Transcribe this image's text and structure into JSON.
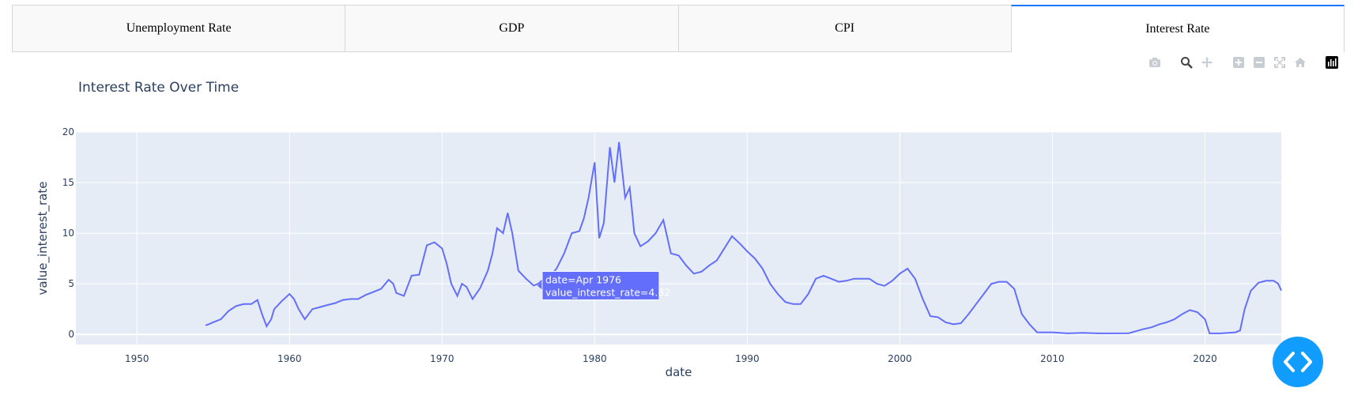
{
  "tabs": [
    {
      "label": "Unemployment Rate",
      "active": false
    },
    {
      "label": "GDP",
      "active": false
    },
    {
      "label": "CPI",
      "active": false
    },
    {
      "label": "Interest Rate",
      "active": true
    }
  ],
  "modebar": {
    "icons": [
      "camera-icon",
      "zoom-icon",
      "pan-icon",
      "zoom-in-icon",
      "zoom-out-icon",
      "autoscale-icon",
      "reset-axes-icon",
      "plotly-logo-icon"
    ]
  },
  "tooltip": {
    "line1": "date=Apr 1976",
    "line2": "value_interest_rate=4.82",
    "date": "1976-04",
    "value": 4.82
  },
  "colors": {
    "line": "#636efa",
    "plot_bg": "#e5ecf6",
    "tab_active_border": "#1975fa",
    "fab": "#119dff"
  },
  "chart_data": {
    "type": "line",
    "title": "Interest Rate Over Time",
    "xlabel": "date",
    "ylabel": "value_interest_rate",
    "xlim": [
      1946,
      2025
    ],
    "ylim": [
      -1,
      20
    ],
    "x_ticks": [
      "1950",
      "1960",
      "1970",
      "1980",
      "1990",
      "2000",
      "2010",
      "2020"
    ],
    "y_ticks": [
      "0",
      "5",
      "10",
      "15",
      "20"
    ],
    "grid": true,
    "series": [
      {
        "x": [
          1954.5,
          1954.7,
          1955.0,
          1955.5,
          1956.0,
          1956.5,
          1957.0,
          1957.5,
          1957.9,
          1958.2,
          1958.5,
          1958.8,
          1959.0,
          1959.5,
          1960.0,
          1960.3,
          1960.6,
          1961.0,
          1961.5,
          1962.0,
          1962.5,
          1963.0,
          1963.5,
          1964.0,
          1964.5,
          1965.0,
          1965.5,
          1966.0,
          1966.5,
          1966.8,
          1967.0,
          1967.5,
          1968.0,
          1968.5,
          1969.0,
          1969.5,
          1970.0,
          1970.3,
          1970.6,
          1971.0,
          1971.3,
          1971.6,
          1972.0,
          1972.5,
          1973.0,
          1973.3,
          1973.6,
          1974.0,
          1974.3,
          1974.6,
          1975.0,
          1975.5,
          1976.0,
          1976.3,
          1976.6,
          1977.0,
          1977.5,
          1978.0,
          1978.5,
          1979.0,
          1979.3,
          1979.6,
          1980.0,
          1980.3,
          1980.6,
          1981.0,
          1981.3,
          1981.6,
          1982.0,
          1982.3,
          1982.6,
          1983.0,
          1983.5,
          1984.0,
          1984.5,
          1985.0,
          1985.5,
          1986.0,
          1986.5,
          1987.0,
          1987.5,
          1988.0,
          1988.5,
          1989.0,
          1989.5,
          1990.0,
          1990.5,
          1991.0,
          1991.5,
          1992.0,
          1992.5,
          1993.0,
          1993.5,
          1994.0,
          1994.5,
          1995.0,
          1995.5,
          1996.0,
          1996.5,
          1997.0,
          1997.5,
          1998.0,
          1998.5,
          1999.0,
          1999.5,
          2000.0,
          2000.5,
          2001.0,
          2001.5,
          2002.0,
          2002.5,
          2003.0,
          2003.5,
          2004.0,
          2004.5,
          2005.0,
          2005.5,
          2006.0,
          2006.5,
          2007.0,
          2007.5,
          2008.0,
          2008.5,
          2009.0,
          2010.0,
          2011.0,
          2012.0,
          2013.0,
          2014.0,
          2015.0,
          2015.9,
          2016.5,
          2017.0,
          2017.5,
          2018.0,
          2018.5,
          2019.0,
          2019.5,
          2020.0,
          2020.3,
          2021.0,
          2022.0,
          2022.3,
          2022.6,
          2023.0,
          2023.5,
          2024.0,
          2024.5,
          2024.8,
          2025.0
        ],
        "y": [
          0.9,
          1.0,
          1.2,
          1.5,
          2.3,
          2.8,
          3.0,
          3.0,
          3.4,
          2.0,
          0.8,
          1.5,
          2.5,
          3.3,
          4.0,
          3.5,
          2.5,
          1.5,
          2.5,
          2.7,
          2.9,
          3.1,
          3.4,
          3.5,
          3.5,
          3.9,
          4.2,
          4.5,
          5.4,
          5.0,
          4.1,
          3.8,
          5.8,
          5.9,
          8.8,
          9.1,
          8.5,
          7.0,
          5.0,
          3.8,
          5.0,
          4.7,
          3.5,
          4.6,
          6.3,
          8.0,
          10.5,
          10.0,
          12.0,
          10.0,
          6.3,
          5.5,
          4.82,
          5.0,
          5.4,
          5.6,
          6.5,
          8.0,
          10.0,
          10.2,
          11.5,
          13.5,
          17.0,
          9.5,
          11.0,
          18.5,
          15.0,
          19.0,
          13.5,
          14.5,
          10.0,
          8.7,
          9.2,
          10.0,
          11.3,
          8.0,
          7.8,
          6.8,
          6.0,
          6.2,
          6.8,
          7.3,
          8.5,
          9.7,
          9.0,
          8.2,
          7.5,
          6.5,
          5.0,
          4.0,
          3.2,
          3.0,
          3.0,
          4.0,
          5.5,
          5.8,
          5.5,
          5.2,
          5.3,
          5.5,
          5.5,
          5.5,
          5.0,
          4.8,
          5.3,
          6.0,
          6.5,
          5.5,
          3.5,
          1.8,
          1.7,
          1.2,
          1.0,
          1.1,
          2.0,
          3.0,
          4.0,
          5.0,
          5.2,
          5.2,
          4.5,
          2.0,
          1.0,
          0.2,
          0.2,
          0.1,
          0.15,
          0.1,
          0.1,
          0.12,
          0.5,
          0.7,
          1.0,
          1.2,
          1.5,
          2.0,
          2.4,
          2.2,
          1.5,
          0.1,
          0.1,
          0.2,
          0.4,
          2.5,
          4.3,
          5.1,
          5.3,
          5.3,
          5.0,
          4.33
        ]
      }
    ]
  }
}
